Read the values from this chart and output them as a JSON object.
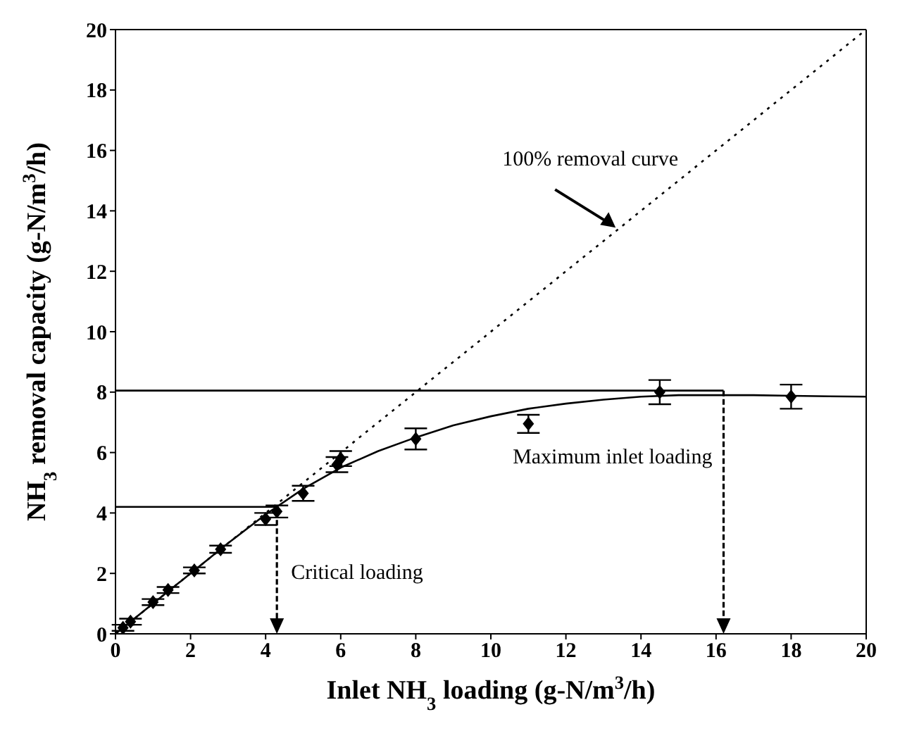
{
  "chart_data": {
    "type": "scatter",
    "xlabel": "Inlet NH$_{3}$ loading (g-N/m$^{3}$/h)",
    "ylabel": "NH$_{3}$ removal capacity (g-N/m$^{3}$/h)",
    "xlim": [
      0,
      20
    ],
    "ylim": [
      0,
      20
    ],
    "xticks": [
      0,
      2,
      4,
      6,
      8,
      10,
      12,
      14,
      16,
      18,
      20
    ],
    "yticks": [
      0,
      2,
      4,
      6,
      8,
      10,
      12,
      14,
      16,
      18,
      20
    ],
    "grid": false,
    "legend": false,
    "series": [
      {
        "type": "line",
        "color": "#000000",
        "line_style": "dotted",
        "x": [
          0,
          20
        ],
        "values": [
          0,
          20
        ]
      },
      {
        "type": "line",
        "color": "#000000",
        "line_style": "solid",
        "x": [
          0,
          1,
          2,
          3,
          4,
          5,
          6,
          7,
          8,
          9,
          10,
          11,
          12,
          13,
          14,
          15,
          16,
          17,
          18,
          19,
          20
        ],
        "values": [
          0,
          1,
          2,
          3,
          3.95,
          4.8,
          5.5,
          6.05,
          6.5,
          6.9,
          7.2,
          7.45,
          7.62,
          7.75,
          7.85,
          7.9,
          7.9,
          7.9,
          7.88,
          7.86,
          7.85
        ]
      },
      {
        "type": "line",
        "color": "#000000",
        "line_style": "solid",
        "x": [
          0,
          16.2
        ],
        "values": [
          8.05,
          8.05
        ]
      },
      {
        "type": "line",
        "color": "#000000",
        "line_style": "solid",
        "x": [
          0,
          4.3
        ],
        "values": [
          4.2,
          4.2
        ]
      },
      {
        "color": "#000000",
        "marker": "diamond",
        "x": [
          0.2,
          0.4,
          1,
          1.4,
          2.1,
          2.8,
          4,
          4.3,
          5,
          5.9,
          6,
          8,
          11,
          14.5,
          18
        ],
        "values": [
          0.2,
          0.4,
          1.05,
          1.45,
          2.1,
          2.8,
          3.8,
          4.05,
          4.65,
          5.6,
          5.8,
          6.45,
          6.95,
          8.0,
          7.85
        ],
        "errors": [
          0.1,
          0.1,
          0.1,
          0.1,
          0.1,
          0.12,
          0.2,
          0.2,
          0.25,
          0.25,
          0.25,
          0.35,
          0.3,
          0.4,
          0.4
        ]
      }
    ],
    "annotations": [
      {
        "text": "100% removal curve",
        "x": 13.4,
        "y": 13.4
      },
      {
        "text": "Critical loading",
        "x": 4.3,
        "y": 4.05
      },
      {
        "text": "Maximum inlet loading",
        "x": 16.2,
        "y": 8.05
      }
    ]
  }
}
